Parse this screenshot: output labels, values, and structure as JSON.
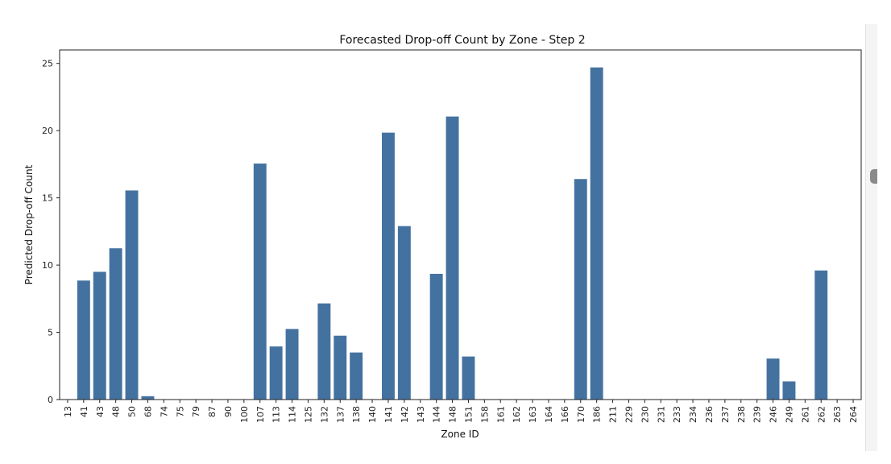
{
  "chart_data": {
    "type": "bar",
    "title": "Forecasted Drop-off Count by Zone - Step 2",
    "xlabel": "Zone ID",
    "ylabel": "Predicted Drop-off Count",
    "ylim": [
      0,
      26
    ],
    "yticks": [
      0,
      5,
      10,
      15,
      20,
      25
    ],
    "grid": false,
    "bar_color": "#4472a0",
    "categories": [
      "13",
      "41",
      "43",
      "48",
      "50",
      "68",
      "74",
      "75",
      "79",
      "87",
      "90",
      "100",
      "107",
      "113",
      "114",
      "125",
      "132",
      "137",
      "138",
      "140",
      "141",
      "142",
      "143",
      "144",
      "148",
      "151",
      "158",
      "161",
      "162",
      "163",
      "164",
      "166",
      "170",
      "186",
      "211",
      "229",
      "230",
      "231",
      "233",
      "234",
      "236",
      "237",
      "238",
      "239",
      "246",
      "249",
      "261",
      "262",
      "263",
      "264"
    ],
    "values": [
      0,
      8.85,
      9.5,
      11.25,
      15.55,
      0.25,
      0,
      0,
      0,
      0,
      0,
      0,
      17.55,
      3.95,
      5.25,
      0,
      7.15,
      4.75,
      3.5,
      0,
      19.85,
      12.9,
      0,
      9.35,
      21.05,
      3.2,
      0,
      0,
      0,
      0,
      0,
      0,
      16.4,
      24.7,
      0,
      0,
      0,
      0,
      0,
      0,
      0,
      0,
      0,
      0,
      3.05,
      1.35,
      0,
      9.6,
      0,
      0
    ]
  },
  "ui": {
    "scrollbar": "vertical-scrollbar"
  }
}
